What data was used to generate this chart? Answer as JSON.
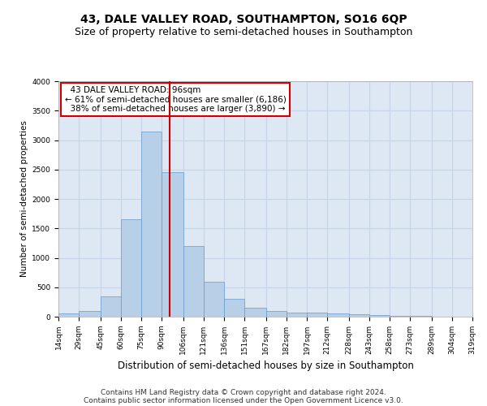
{
  "title1": "43, DALE VALLEY ROAD, SOUTHAMPTON, SO16 6QP",
  "title2": "Size of property relative to semi-detached houses in Southampton",
  "xlabel": "Distribution of semi-detached houses by size in Southampton",
  "ylabel": "Number of semi-detached properties",
  "footer1": "Contains HM Land Registry data © Crown copyright and database right 2024.",
  "footer2": "Contains public sector information licensed under the Open Government Licence v3.0.",
  "bin_edges": [
    14,
    29,
    45,
    60,
    75,
    90,
    106,
    121,
    136,
    151,
    167,
    182,
    197,
    212,
    228,
    243,
    258,
    273,
    289,
    304,
    319
  ],
  "bar_heights": [
    50,
    100,
    350,
    1650,
    3150,
    2450,
    1200,
    600,
    300,
    150,
    100,
    75,
    65,
    55,
    40,
    25,
    15,
    10,
    5,
    3
  ],
  "bar_color": "#b8cfe8",
  "bar_edge_color": "#6699cc",
  "property_value": 96,
  "property_label": "43 DALE VALLEY ROAD: 96sqm",
  "pct_smaller": 61,
  "n_smaller": 6186,
  "pct_larger": 38,
  "n_larger": 3890,
  "annotation_box_color": "#ffffff",
  "annotation_box_edge": "#cc0000",
  "vline_color": "#cc0000",
  "ylim": [
    0,
    4000
  ],
  "yticks": [
    0,
    500,
    1000,
    1500,
    2000,
    2500,
    3000,
    3500,
    4000
  ],
  "grid_color": "#c8d4e8",
  "background_color": "#dde8f4",
  "title1_fontsize": 10,
  "title2_fontsize": 9,
  "xlabel_fontsize": 8.5,
  "ylabel_fontsize": 7.5,
  "tick_fontsize": 6.5,
  "footer_fontsize": 6.5,
  "annotation_fontsize": 7.5
}
